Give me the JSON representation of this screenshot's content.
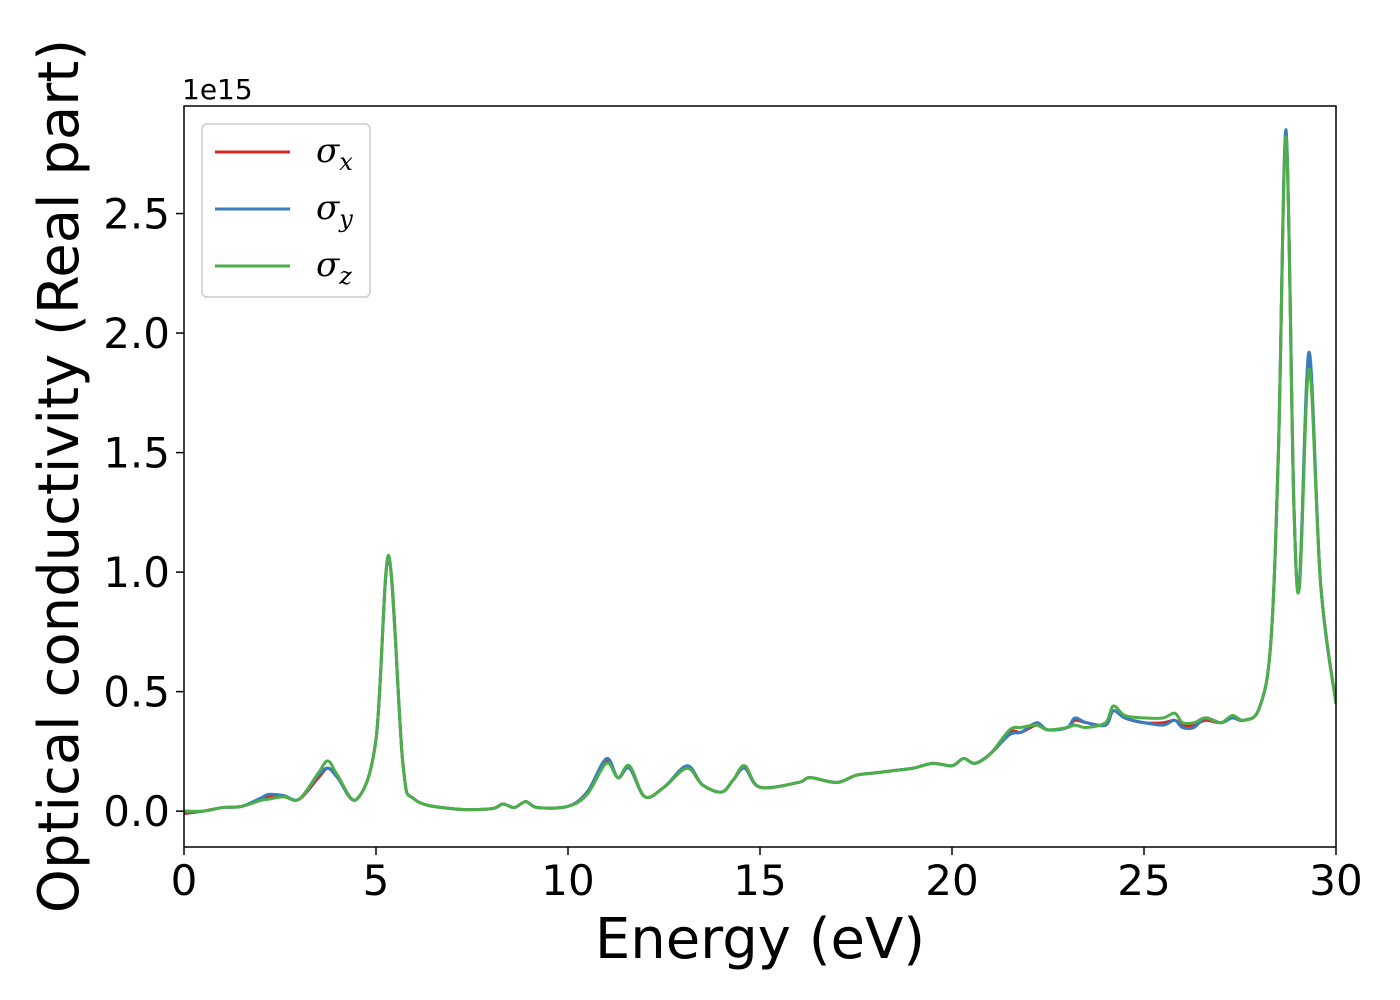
{
  "chart_data": {
    "type": "line",
    "title": "",
    "xlabel": "Energy (eV)",
    "ylabel": "Optical conductivity (Real part)",
    "y_offset_label": "1e15",
    "xlim": [
      0,
      30
    ],
    "ylim": [
      -0.15,
      2.95
    ],
    "xticks": [
      0,
      5,
      10,
      15,
      20,
      25,
      30
    ],
    "xtick_labels": [
      "0",
      "5",
      "10",
      "15",
      "20",
      "25",
      "30"
    ],
    "yticks": [
      0.0,
      0.5,
      1.0,
      1.5,
      2.0,
      2.5
    ],
    "ytick_labels": [
      "0.0",
      "0.5",
      "1.0",
      "1.5",
      "2.0",
      "2.5"
    ],
    "grid": false,
    "legend_position": "top-left",
    "colors": {
      "sigma_x": "#d62728",
      "sigma_y": "#3a7dbf",
      "sigma_z": "#4daf4a",
      "frame": "#000000",
      "legend_border": "#cccccc"
    },
    "x": [
      0,
      0.5,
      1.0,
      1.5,
      2.0,
      2.2,
      2.6,
      3.0,
      3.5,
      3.75,
      4.0,
      4.5,
      5.0,
      5.33,
      5.7,
      6.0,
      7.0,
      8.0,
      8.3,
      8.6,
      8.9,
      9.2,
      10.0,
      10.5,
      11.0,
      11.3,
      11.6,
      12.0,
      12.5,
      13.1,
      13.5,
      14.0,
      14.3,
      14.6,
      15.0,
      16.0,
      16.3,
      17.0,
      17.5,
      18.0,
      18.5,
      19.0,
      19.5,
      20.0,
      20.3,
      20.6,
      21.0,
      21.5,
      21.8,
      22.2,
      22.5,
      23.0,
      23.2,
      23.5,
      24.0,
      24.2,
      24.5,
      25.0,
      25.5,
      25.8,
      26.0,
      26.3,
      26.6,
      27.0,
      27.3,
      27.6,
      28.0,
      28.3,
      28.5,
      28.7,
      28.9,
      29.05,
      29.3,
      29.6,
      30.0
    ],
    "series": [
      {
        "name": "σ_x",
        "label_main": "σ",
        "label_sub": "x",
        "color": "#d62728",
        "values": [
          -0.01,
          0.0,
          0.015,
          0.02,
          0.05,
          0.06,
          0.06,
          0.05,
          0.14,
          0.18,
          0.14,
          0.05,
          0.3,
          1.06,
          0.2,
          0.05,
          0.01,
          0.01,
          0.03,
          0.015,
          0.04,
          0.015,
          0.02,
          0.08,
          0.21,
          0.14,
          0.18,
          0.06,
          0.1,
          0.18,
          0.11,
          0.08,
          0.13,
          0.18,
          0.1,
          0.12,
          0.14,
          0.12,
          0.15,
          0.16,
          0.17,
          0.18,
          0.2,
          0.19,
          0.22,
          0.2,
          0.24,
          0.33,
          0.33,
          0.36,
          0.34,
          0.35,
          0.38,
          0.37,
          0.36,
          0.42,
          0.39,
          0.37,
          0.37,
          0.38,
          0.36,
          0.36,
          0.38,
          0.37,
          0.39,
          0.38,
          0.43,
          0.7,
          1.5,
          2.83,
          1.3,
          0.96,
          1.88,
          0.95,
          0.45
        ]
      },
      {
        "name": "σ_y",
        "label_main": "σ",
        "label_sub": "y",
        "color": "#3a7dbf",
        "values": [
          0.0,
          0.0,
          0.015,
          0.02,
          0.055,
          0.07,
          0.065,
          0.05,
          0.15,
          0.18,
          0.14,
          0.05,
          0.3,
          1.06,
          0.2,
          0.05,
          0.01,
          0.01,
          0.03,
          0.015,
          0.04,
          0.015,
          0.02,
          0.08,
          0.22,
          0.14,
          0.18,
          0.06,
          0.1,
          0.19,
          0.11,
          0.08,
          0.13,
          0.18,
          0.1,
          0.12,
          0.14,
          0.12,
          0.15,
          0.16,
          0.17,
          0.18,
          0.2,
          0.19,
          0.22,
          0.2,
          0.24,
          0.32,
          0.33,
          0.37,
          0.34,
          0.35,
          0.39,
          0.37,
          0.36,
          0.42,
          0.39,
          0.37,
          0.36,
          0.38,
          0.35,
          0.35,
          0.39,
          0.37,
          0.39,
          0.38,
          0.43,
          0.7,
          1.5,
          2.85,
          1.3,
          0.97,
          1.92,
          0.95,
          0.45
        ]
      },
      {
        "name": "σ_z",
        "label_main": "σ",
        "label_sub": "z",
        "color": "#4daf4a",
        "values": [
          0.0,
          0.0,
          0.015,
          0.02,
          0.045,
          0.05,
          0.06,
          0.05,
          0.16,
          0.21,
          0.15,
          0.05,
          0.3,
          1.07,
          0.2,
          0.05,
          0.01,
          0.01,
          0.03,
          0.015,
          0.04,
          0.015,
          0.02,
          0.07,
          0.2,
          0.14,
          0.19,
          0.06,
          0.1,
          0.18,
          0.11,
          0.08,
          0.13,
          0.19,
          0.1,
          0.12,
          0.14,
          0.12,
          0.15,
          0.16,
          0.17,
          0.18,
          0.2,
          0.19,
          0.22,
          0.2,
          0.24,
          0.34,
          0.35,
          0.36,
          0.34,
          0.35,
          0.36,
          0.35,
          0.37,
          0.44,
          0.4,
          0.39,
          0.39,
          0.41,
          0.37,
          0.37,
          0.39,
          0.37,
          0.4,
          0.38,
          0.43,
          0.7,
          1.5,
          2.82,
          1.3,
          0.94,
          1.85,
          0.95,
          0.45
        ]
      }
    ]
  }
}
